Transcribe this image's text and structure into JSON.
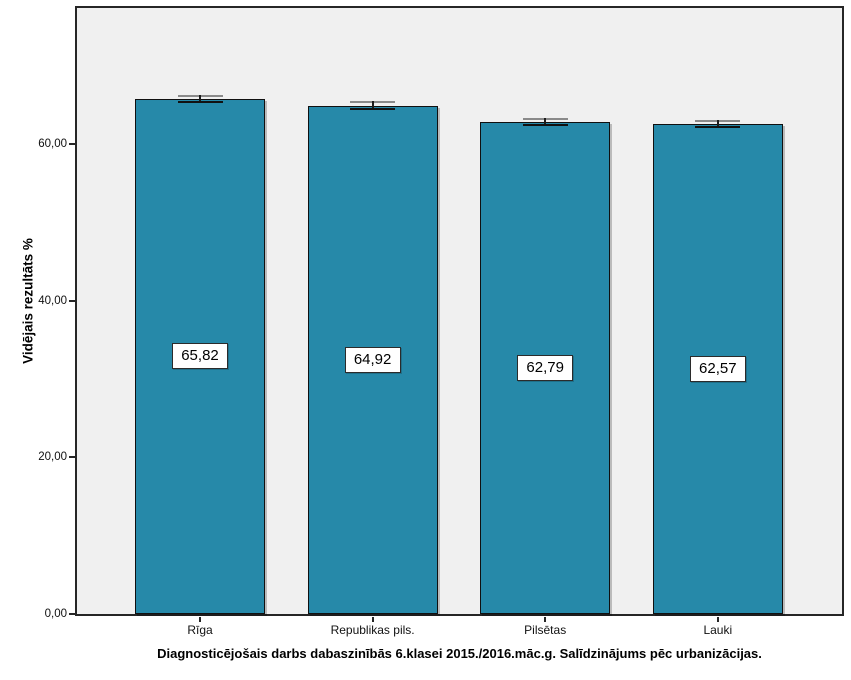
{
  "chart_data": {
    "type": "bar",
    "caption": "Diagnosticējošais darbs dabaszinībās 6.klasei 2015./2016.māc.g. Salīdzinājums pēc urbanizācijas.",
    "ylabel": "Vidējais rezultāts %",
    "xlabel": "",
    "categories": [
      "Rīga",
      "Republikas pils.",
      "Pilsētas",
      "Lauki"
    ],
    "values": [
      65.82,
      64.92,
      62.79,
      62.57
    ],
    "value_labels": [
      "65,82",
      "64,92",
      "62,79",
      "62,57"
    ],
    "error_bars": [
      0.5,
      0.6,
      0.5,
      0.55
    ],
    "yticks": [
      {
        "value": 0,
        "label": "0,00"
      },
      {
        "value": 20,
        "label": "20,00"
      },
      {
        "value": 40,
        "label": "40,00"
      },
      {
        "value": 60,
        "label": "60,00"
      }
    ],
    "ylim": [
      0,
      77.4
    ],
    "grid": false,
    "legend": "none",
    "bar_color": "#2689A9",
    "bar_border_color": "#101010",
    "plot_bg": "#F0F0F0",
    "frame_color": "#262626"
  }
}
